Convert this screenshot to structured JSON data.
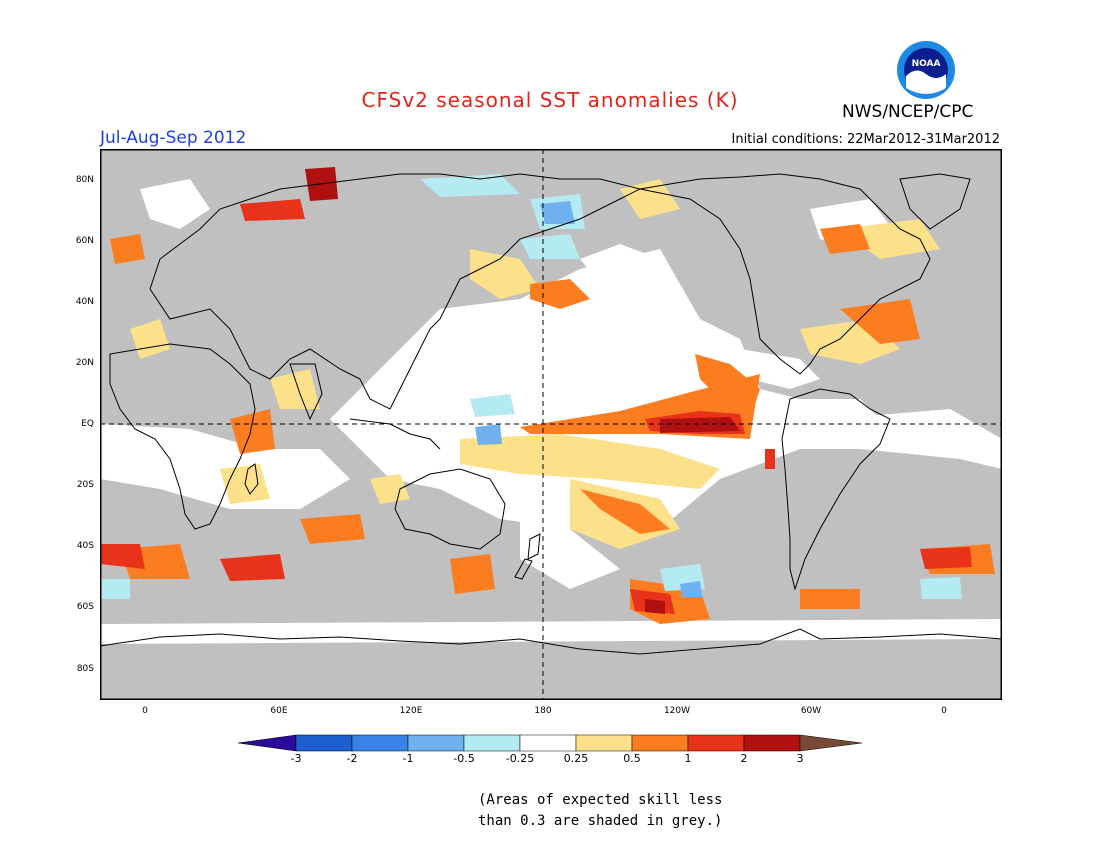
{
  "title": "CFSv2 seasonal SST anomalies (K)",
  "organization": "NWS/NCEP/CPC",
  "logo_text": "NOAA",
  "period": "Jul-Aug-Sep 2012",
  "initial_conditions": "Initial conditions: 22Mar2012-31Mar2012",
  "lat_labels": [
    "80N",
    "60N",
    "40N",
    "20N",
    "EQ",
    "20S",
    "40S",
    "60S",
    "80S"
  ],
  "lon_labels": [
    "0",
    "60E",
    "120E",
    "180",
    "120W",
    "60W",
    "0"
  ],
  "colorbar": {
    "labels": [
      "-3",
      "-2",
      "-1",
      "-0.5",
      "-0.25",
      "0.25",
      "0.5",
      "1",
      "2",
      "3"
    ],
    "colors": [
      "#2a0b9c",
      "#1e5fd0",
      "#3a82e6",
      "#6fb0ee",
      "#b4eaf2",
      "#ffffff",
      "#fde08a",
      "#fb7d20",
      "#e8321a",
      "#b01010",
      "#7a4a38"
    ]
  },
  "note_lines": [
    "(Areas of expected skill less",
    "than 0.3 are shaded in grey.)"
  ],
  "colors": {
    "grey": "#c0c0c0",
    "title": "#e0241b",
    "period": "#1f3fe0"
  }
}
